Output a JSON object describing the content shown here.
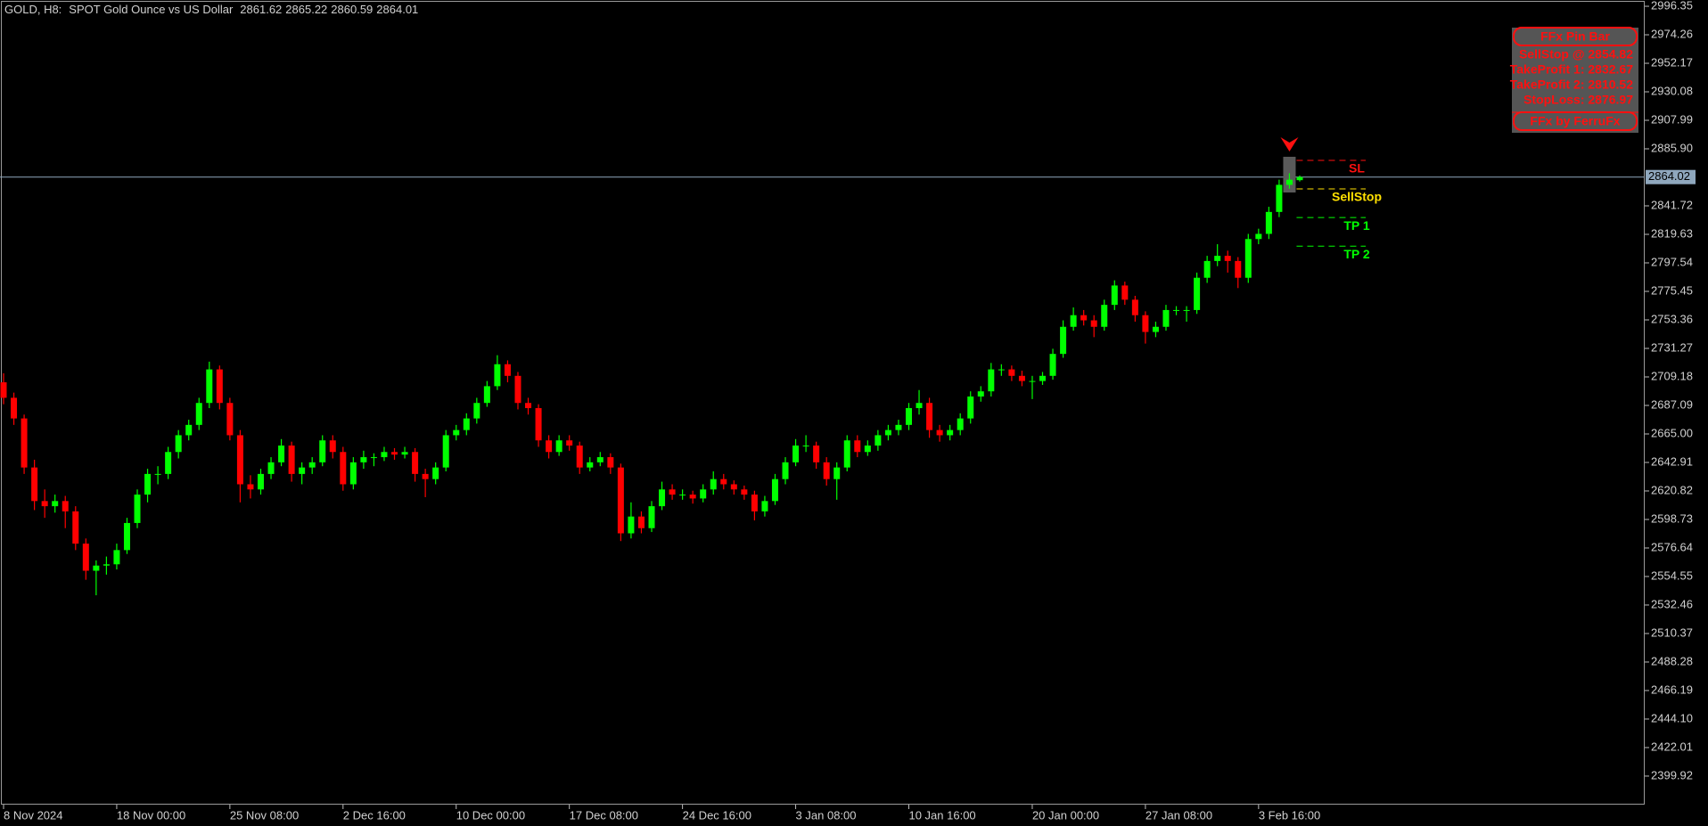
{
  "chart_data": {
    "type": "candlestick",
    "symbol": "GOLD, H8:",
    "description": "SPOT Gold Ounce vs US Dollar",
    "up_color": "#00ff00",
    "down_color": "#ff0000",
    "ylim": [
      2377.8,
      3001.2
    ],
    "yticks": [
      2996.35,
      2974.26,
      2952.17,
      2930.08,
      2907.99,
      {
        "value": 2885.9,
        "label": "2885.90"
      },
      2841.72,
      2819.63,
      2797.54,
      2775.45,
      2753.36,
      2731.27,
      2709.18,
      2687.09,
      {
        "value": 2665,
        "label": "2665.00"
      },
      2642.91,
      2620.82,
      2598.73,
      2576.64,
      2554.55,
      2532.46,
      2510.37,
      2488.28,
      2466.19,
      {
        "value": 2444.1,
        "label": "2444.10"
      },
      2422.01,
      2399.92
    ],
    "last_price": 2864.02,
    "categories": [
      "8 Nov 2024",
      null,
      null,
      null,
      null,
      null,
      null,
      null,
      null,
      null,
      null,
      "18 Nov 00:00",
      null,
      null,
      null,
      null,
      null,
      null,
      null,
      null,
      null,
      null,
      "25 Nov 08:00",
      null,
      null,
      null,
      null,
      null,
      null,
      null,
      null,
      null,
      null,
      "2 Dec 16:00",
      null,
      null,
      null,
      null,
      null,
      null,
      null,
      null,
      null,
      null,
      "10 Dec 00:00",
      null,
      null,
      null,
      null,
      null,
      null,
      null,
      null,
      null,
      null,
      "17 Dec 08:00",
      null,
      null,
      null,
      null,
      null,
      null,
      null,
      null,
      null,
      null,
      "24 Dec 16:00",
      null,
      null,
      null,
      null,
      null,
      null,
      null,
      null,
      null,
      null,
      "3 Jan 08:00",
      null,
      null,
      null,
      null,
      null,
      null,
      null,
      null,
      null,
      null,
      "10 Jan 16:00",
      null,
      null,
      null,
      null,
      null,
      null,
      null,
      null,
      null,
      null,
      null,
      "20 Jan 00:00",
      null,
      null,
      null,
      null,
      null,
      null,
      null,
      null,
      null,
      null,
      "27 Jan 08:00",
      null,
      null,
      null,
      null,
      null,
      null,
      null,
      null,
      null,
      null,
      "3 Feb 16:00",
      null,
      null,
      null,
      null
    ],
    "ohlc": [
      [
        2705,
        2712,
        2688,
        2693
      ],
      [
        2693,
        2697,
        2672,
        2677
      ],
      [
        2677,
        2680,
        2634,
        2639
      ],
      [
        2639,
        2645,
        2606,
        2613
      ],
      [
        2613,
        2622,
        2600,
        2609
      ],
      [
        2609,
        2618,
        2604,
        2613
      ],
      [
        2613,
        2617,
        2592,
        2605
      ],
      [
        2605,
        2609,
        2575,
        2580
      ],
      [
        2580,
        2584,
        2552,
        2559
      ],
      [
        2559,
        2567,
        2540,
        2563
      ],
      [
        2563,
        2570,
        2556,
        2564
      ],
      [
        2564,
        2580,
        2560,
        2575
      ],
      [
        2575,
        2600,
        2572,
        2596
      ],
      [
        2596,
        2622,
        2592,
        2618
      ],
      [
        2618,
        2638,
        2612,
        2634
      ],
      [
        2634,
        2640,
        2626,
        2634
      ],
      [
        2634,
        2655,
        2630,
        2651
      ],
      [
        2651,
        2668,
        2646,
        2664
      ],
      [
        2664,
        2676,
        2660,
        2672
      ],
      [
        2672,
        2693,
        2668,
        2689
      ],
      [
        2689,
        2721,
        2685,
        2715
      ],
      [
        2715,
        2718,
        2684,
        2689
      ],
      [
        2689,
        2693,
        2660,
        2664
      ],
      [
        2664,
        2668,
        2612,
        2626
      ],
      [
        2626,
        2633,
        2615,
        2622
      ],
      [
        2622,
        2638,
        2618,
        2634
      ],
      [
        2634,
        2647,
        2630,
        2643
      ],
      [
        2643,
        2661,
        2640,
        2656
      ],
      [
        2656,
        2659,
        2628,
        2634
      ],
      [
        2634,
        2643,
        2626,
        2639
      ],
      [
        2639,
        2647,
        2634,
        2643
      ],
      [
        2643,
        2664,
        2640,
        2660
      ],
      [
        2660,
        2664,
        2646,
        2651
      ],
      [
        2651,
        2655,
        2621,
        2626
      ],
      [
        2626,
        2647,
        2622,
        2643
      ],
      [
        2643,
        2652,
        2638,
        2647
      ],
      [
        2647,
        2650,
        2640,
        2647
      ],
      [
        2647,
        2655,
        2644,
        2651
      ],
      [
        2651,
        2654,
        2645,
        2649
      ],
      [
        2649,
        2655,
        2646,
        2651
      ],
      [
        2651,
        2654,
        2628,
        2634
      ],
      [
        2634,
        2638,
        2616,
        2630
      ],
      [
        2630,
        2643,
        2626,
        2639
      ],
      [
        2639,
        2668,
        2636,
        2664
      ],
      [
        2664,
        2672,
        2660,
        2668
      ],
      [
        2668,
        2681,
        2664,
        2677
      ],
      [
        2677,
        2693,
        2673,
        2689
      ],
      [
        2689,
        2706,
        2686,
        2702
      ],
      [
        2702,
        2726,
        2699,
        2719
      ],
      [
        2719,
        2722,
        2705,
        2710
      ],
      [
        2710,
        2713,
        2684,
        2689
      ],
      [
        2689,
        2693,
        2680,
        2685
      ],
      [
        2685,
        2688,
        2655,
        2660
      ],
      [
        2660,
        2664,
        2646,
        2651
      ],
      [
        2651,
        2664,
        2648,
        2660
      ],
      [
        2660,
        2664,
        2652,
        2656
      ],
      [
        2656,
        2659,
        2634,
        2639
      ],
      [
        2639,
        2647,
        2636,
        2643
      ],
      [
        2643,
        2651,
        2640,
        2647
      ],
      [
        2647,
        2650,
        2634,
        2639
      ],
      [
        2639,
        2642,
        2582,
        2588
      ],
      [
        2588,
        2612,
        2584,
        2601
      ],
      [
        2601,
        2605,
        2588,
        2592
      ],
      [
        2592,
        2613,
        2589,
        2609
      ],
      [
        2609,
        2628,
        2606,
        2622
      ],
      [
        2622,
        2626,
        2614,
        2618
      ],
      [
        2618,
        2622,
        2614,
        2618
      ],
      [
        2618,
        2621,
        2611,
        2615
      ],
      [
        2615,
        2626,
        2612,
        2622
      ],
      [
        2622,
        2636,
        2618,
        2630
      ],
      [
        2630,
        2634,
        2622,
        2626
      ],
      [
        2626,
        2629,
        2618,
        2622
      ],
      [
        2622,
        2625,
        2614,
        2618
      ],
      [
        2618,
        2621,
        2598,
        2605
      ],
      [
        2605,
        2617,
        2601,
        2613
      ],
      [
        2613,
        2634,
        2610,
        2630
      ],
      [
        2630,
        2647,
        2626,
        2643
      ],
      [
        2643,
        2661,
        2640,
        2656
      ],
      [
        2656,
        2664,
        2651,
        2656
      ],
      [
        2656,
        2659,
        2638,
        2643
      ],
      [
        2643,
        2647,
        2625,
        2630
      ],
      [
        2630,
        2643,
        2614,
        2639
      ],
      [
        2639,
        2664,
        2636,
        2660
      ],
      [
        2660,
        2664,
        2647,
        2651
      ],
      [
        2651,
        2660,
        2648,
        2656
      ],
      [
        2656,
        2668,
        2652,
        2664
      ],
      [
        2664,
        2672,
        2660,
        2668
      ],
      [
        2668,
        2676,
        2664,
        2672
      ],
      [
        2672,
        2689,
        2668,
        2685
      ],
      [
        2685,
        2699,
        2680,
        2689
      ],
      [
        2689,
        2693,
        2662,
        2668
      ],
      [
        2668,
        2672,
        2659,
        2664
      ],
      [
        2664,
        2672,
        2660,
        2668
      ],
      [
        2668,
        2681,
        2664,
        2677
      ],
      [
        2677,
        2698,
        2673,
        2694
      ],
      [
        2694,
        2702,
        2690,
        2698
      ],
      [
        2698,
        2720,
        2694,
        2715
      ],
      [
        2715,
        2719,
        2710,
        2715
      ],
      [
        2715,
        2718,
        2706,
        2710
      ],
      [
        2710,
        2714,
        2702,
        2706
      ],
      [
        2706,
        2710,
        2692,
        2706
      ],
      [
        2706,
        2713,
        2703,
        2710
      ],
      [
        2710,
        2731,
        2707,
        2727
      ],
      [
        2727,
        2753,
        2724,
        2748
      ],
      [
        2748,
        2763,
        2745,
        2757
      ],
      [
        2757,
        2761,
        2749,
        2753
      ],
      [
        2753,
        2757,
        2740,
        2748
      ],
      [
        2748,
        2769,
        2745,
        2765
      ],
      [
        2765,
        2784,
        2761,
        2780
      ],
      [
        2780,
        2783,
        2765,
        2769
      ],
      [
        2769,
        2772,
        2752,
        2757
      ],
      [
        2757,
        2760,
        2735,
        2744
      ],
      [
        2744,
        2752,
        2740,
        2748
      ],
      [
        2748,
        2765,
        2745,
        2761
      ],
      [
        2761,
        2764,
        2757,
        2761
      ],
      [
        2761,
        2764,
        2752,
        2761
      ],
      [
        2761,
        2790,
        2758,
        2786
      ],
      [
        2786,
        2803,
        2782,
        2799
      ],
      [
        2799,
        2812,
        2795,
        2803
      ],
      [
        2803,
        2807,
        2790,
        2799
      ],
      [
        2799,
        2802,
        2778,
        2786
      ],
      [
        2786,
        2820,
        2782,
        2816
      ],
      [
        2816,
        2824,
        2812,
        2820
      ],
      [
        2820,
        2841,
        2816,
        2837
      ],
      [
        2837,
        2862,
        2833,
        2858
      ],
      [
        2858,
        2867,
        2855,
        2862
      ],
      [
        2861.62,
        2865.22,
        2860.59,
        2864.01
      ]
    ],
    "levels": [
      {
        "name": "SL",
        "value": 2876.97,
        "color": "#ff1010"
      },
      {
        "name": "SellStop",
        "value": 2854.82,
        "color": "#ffe000"
      },
      {
        "name": "TP 1",
        "value": 2832.67,
        "color": "#00ff00"
      },
      {
        "name": "TP 2",
        "value": 2810.52,
        "color": "#00ff00"
      }
    ],
    "panel": {
      "title": "FFx Pin Bar",
      "lines": [
        "SellStop @ 2854.82",
        "TakeProfit 1: 2832.67",
        "TakeProfit 2: 2810.52",
        "StopLoss: 2876.97"
      ],
      "footer": "FFx by FerruFx"
    }
  }
}
